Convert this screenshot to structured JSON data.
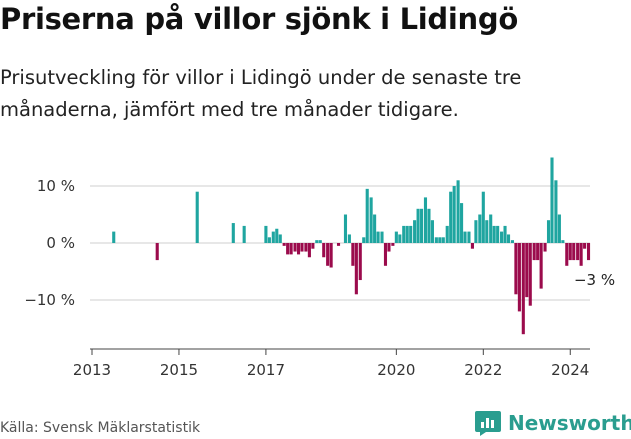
{
  "title": "Priserna på villor sjönk i Lidingö",
  "subtitle": "Prisutveckling för villor i Lidingö under de senaste tre månaderna, jämfört med tre månader tidigare.",
  "source": "Källa: Svensk Mäklarstatistik",
  "brand": "Newsworthy",
  "chart_data": {
    "type": "bar",
    "title": "",
    "xlabel": "",
    "ylabel": "",
    "ylim": [
      -18,
      15.5
    ],
    "xlim": [
      2013.0,
      2024.5
    ],
    "y_ticks": [
      {
        "value": 10,
        "label": "10 %"
      },
      {
        "value": 0,
        "label": "0 %"
      },
      {
        "value": -10,
        "label": "−10 %"
      }
    ],
    "x_ticks": [
      {
        "value": 2013,
        "label": "2013"
      },
      {
        "value": 2015,
        "label": "2015"
      },
      {
        "value": 2017,
        "label": "2017"
      },
      {
        "value": 2020,
        "label": "2020"
      },
      {
        "value": 2022,
        "label": "2022"
      },
      {
        "value": 2024,
        "label": "2024"
      }
    ],
    "positive_color": "#1fa5a0",
    "negative_color": "#9b0b4c",
    "last_value_label": "−3 %",
    "series": [
      {
        "name": "Prisutveckling (%)",
        "points": [
          {
            "x": 2013.5,
            "y": 2
          },
          {
            "x": 2014.5,
            "y": -3
          },
          {
            "x": 2015.42,
            "y": 9
          },
          {
            "x": 2016.25,
            "y": 3.5
          },
          {
            "x": 2016.5,
            "y": 3
          },
          {
            "x": 2017.0,
            "y": 3
          },
          {
            "x": 2017.08,
            "y": 1
          },
          {
            "x": 2017.17,
            "y": 2
          },
          {
            "x": 2017.25,
            "y": 2.5
          },
          {
            "x": 2017.33,
            "y": 1.5
          },
          {
            "x": 2017.42,
            "y": -0.5
          },
          {
            "x": 2017.5,
            "y": -2
          },
          {
            "x": 2017.58,
            "y": -2
          },
          {
            "x": 2017.67,
            "y": -1.5
          },
          {
            "x": 2017.75,
            "y": -2
          },
          {
            "x": 2017.83,
            "y": -1.5
          },
          {
            "x": 2017.92,
            "y": -1.5
          },
          {
            "x": 2018.0,
            "y": -2.5
          },
          {
            "x": 2018.08,
            "y": -1
          },
          {
            "x": 2018.17,
            "y": 0.5
          },
          {
            "x": 2018.25,
            "y": 0.5
          },
          {
            "x": 2018.33,
            "y": -2.5
          },
          {
            "x": 2018.42,
            "y": -4
          },
          {
            "x": 2018.5,
            "y": -4.3
          },
          {
            "x": 2018.67,
            "y": -0.5
          },
          {
            "x": 2018.83,
            "y": 5
          },
          {
            "x": 2018.92,
            "y": 1.5
          },
          {
            "x": 2019.0,
            "y": -4
          },
          {
            "x": 2019.08,
            "y": -9
          },
          {
            "x": 2019.17,
            "y": -6.5
          },
          {
            "x": 2019.25,
            "y": 1
          },
          {
            "x": 2019.33,
            "y": 9.5
          },
          {
            "x": 2019.42,
            "y": 8
          },
          {
            "x": 2019.5,
            "y": 5
          },
          {
            "x": 2019.58,
            "y": 2
          },
          {
            "x": 2019.67,
            "y": 2
          },
          {
            "x": 2019.75,
            "y": -4
          },
          {
            "x": 2019.83,
            "y": -1.5
          },
          {
            "x": 2019.92,
            "y": -0.5
          },
          {
            "x": 2020.0,
            "y": 2
          },
          {
            "x": 2020.08,
            "y": 1.5
          },
          {
            "x": 2020.17,
            "y": 3
          },
          {
            "x": 2020.25,
            "y": 3
          },
          {
            "x": 2020.33,
            "y": 3
          },
          {
            "x": 2020.42,
            "y": 4
          },
          {
            "x": 2020.5,
            "y": 6
          },
          {
            "x": 2020.58,
            "y": 6
          },
          {
            "x": 2020.67,
            "y": 8
          },
          {
            "x": 2020.75,
            "y": 6
          },
          {
            "x": 2020.83,
            "y": 4
          },
          {
            "x": 2020.92,
            "y": 1
          },
          {
            "x": 2021.0,
            "y": 1
          },
          {
            "x": 2021.08,
            "y": 1
          },
          {
            "x": 2021.17,
            "y": 3
          },
          {
            "x": 2021.25,
            "y": 9
          },
          {
            "x": 2021.33,
            "y": 10
          },
          {
            "x": 2021.42,
            "y": 11
          },
          {
            "x": 2021.5,
            "y": 7
          },
          {
            "x": 2021.58,
            "y": 2
          },
          {
            "x": 2021.67,
            "y": 2
          },
          {
            "x": 2021.75,
            "y": -1
          },
          {
            "x": 2021.83,
            "y": 4
          },
          {
            "x": 2021.92,
            "y": 5
          },
          {
            "x": 2022.0,
            "y": 9
          },
          {
            "x": 2022.08,
            "y": 4
          },
          {
            "x": 2022.17,
            "y": 5
          },
          {
            "x": 2022.25,
            "y": 3
          },
          {
            "x": 2022.33,
            "y": 3
          },
          {
            "x": 2022.42,
            "y": 2
          },
          {
            "x": 2022.5,
            "y": 3
          },
          {
            "x": 2022.58,
            "y": 1.5
          },
          {
            "x": 2022.67,
            "y": 0.5
          },
          {
            "x": 2022.75,
            "y": -9
          },
          {
            "x": 2022.83,
            "y": -12
          },
          {
            "x": 2022.92,
            "y": -16
          },
          {
            "x": 2023.0,
            "y": -9.5
          },
          {
            "x": 2023.08,
            "y": -11
          },
          {
            "x": 2023.17,
            "y": -3
          },
          {
            "x": 2023.25,
            "y": -3
          },
          {
            "x": 2023.33,
            "y": -8
          },
          {
            "x": 2023.42,
            "y": -1.5
          },
          {
            "x": 2023.5,
            "y": 4
          },
          {
            "x": 2023.58,
            "y": 15
          },
          {
            "x": 2023.67,
            "y": 11
          },
          {
            "x": 2023.75,
            "y": 5
          },
          {
            "x": 2023.83,
            "y": 0.5
          },
          {
            "x": 2023.92,
            "y": -4
          },
          {
            "x": 2024.0,
            "y": -3
          },
          {
            "x": 2024.08,
            "y": -3
          },
          {
            "x": 2024.17,
            "y": -3
          },
          {
            "x": 2024.25,
            "y": -4
          },
          {
            "x": 2024.33,
            "y": -1
          },
          {
            "x": 2024.42,
            "y": -3
          }
        ]
      }
    ]
  }
}
